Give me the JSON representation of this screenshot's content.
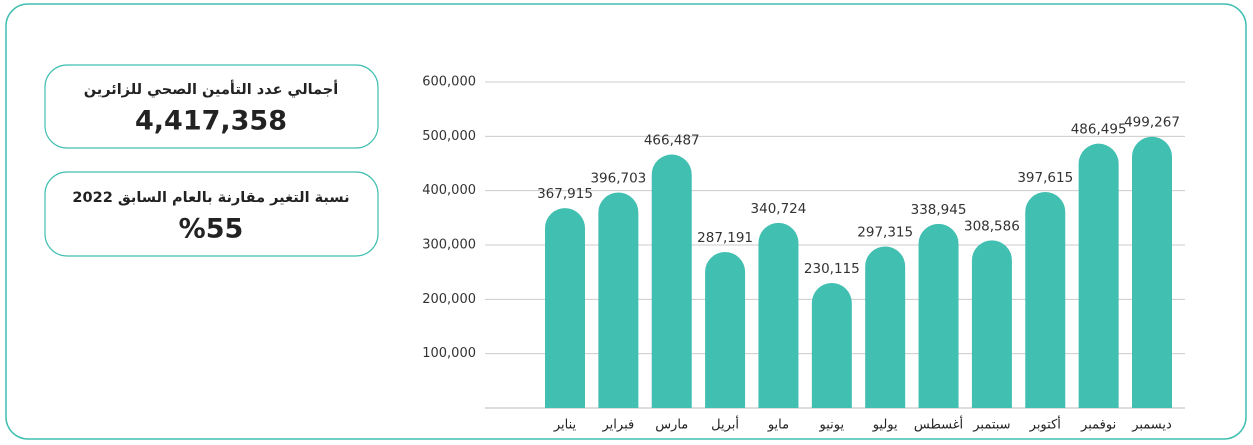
{
  "cards": [
    {
      "title": "أجمالي عدد التأمين الصحي للزائرين",
      "value": "4,417,358"
    },
    {
      "title": "نسبة التغير مقارنة بالعام السابق 2022",
      "value": "%55"
    }
  ],
  "chart_data": {
    "type": "bar",
    "categories": [
      "يناير",
      "فبراير",
      "مارس",
      "أبريل",
      "مايو",
      "يونيو",
      "يوليو",
      "أغسطس",
      "سبتمبر",
      "أكتوبر",
      "نوفمبر",
      "ديسمبر"
    ],
    "values": [
      367915,
      396703,
      466487,
      287191,
      340724,
      230115,
      297315,
      338945,
      308586,
      397615,
      486495,
      499267
    ],
    "value_labels": [
      "367,915",
      "396,703",
      "466,487",
      "287,191",
      "340,724",
      "230,115",
      "297,315",
      "338,945",
      "308,586",
      "397,615",
      "486,495",
      "499,267"
    ],
    "color": "#41bfb1",
    "ylim": [
      0,
      600000
    ],
    "yticks": [
      {
        "value": 100000,
        "label": "100,000"
      },
      {
        "value": 200000,
        "label": "200,000"
      },
      {
        "value": 300000,
        "label": "300,000"
      },
      {
        "value": 400000,
        "label": "400,000"
      },
      {
        "value": 500000,
        "label": "500,000"
      },
      {
        "value": 600000,
        "label": "600,000"
      }
    ],
    "grid": true
  }
}
